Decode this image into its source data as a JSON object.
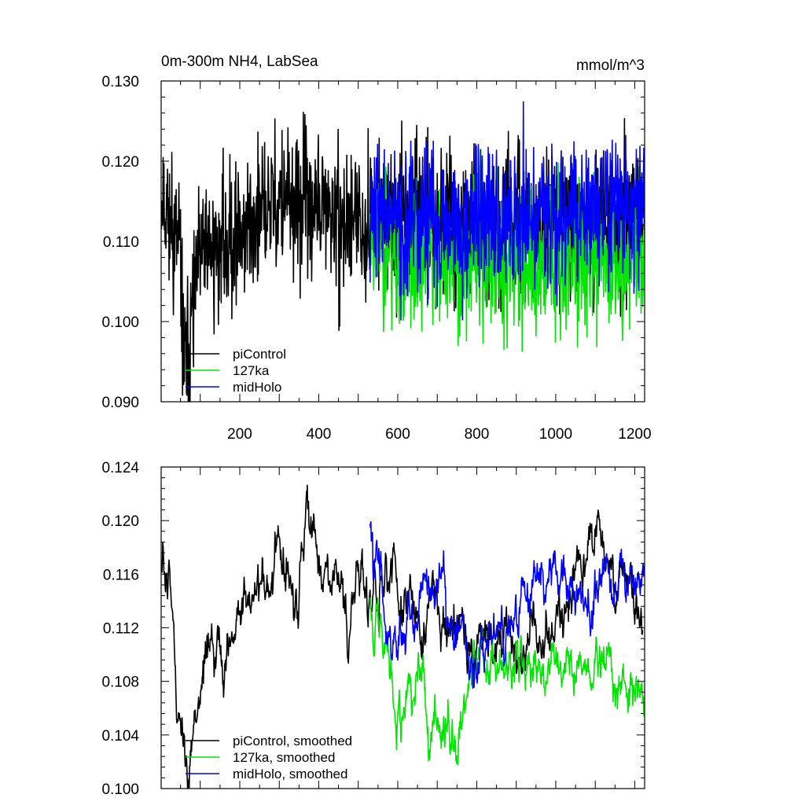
{
  "chart_data": [
    {
      "type": "line",
      "title": "0m-300m NH4, LabSea",
      "units": "mmol/m^3",
      "xlim": [
        1,
        1225
      ],
      "ylim": [
        0.09,
        0.13
      ],
      "yticks": [
        0.09,
        0.1,
        0.11,
        0.12,
        0.13
      ],
      "ytick_labels": [
        "0.090",
        "0.100",
        "0.110",
        "0.120",
        "0.130"
      ],
      "xticks": [
        200,
        400,
        600,
        800,
        1000,
        1200
      ],
      "xtick_labels": [
        "200",
        "400",
        "600",
        "800",
        "1000",
        "1200"
      ],
      "legend_position": "bottom-left",
      "series": [
        {
          "name": "piControl",
          "color": "#000000",
          "x_range": [
            1,
            1220
          ],
          "x": [
            1,
            50,
            60,
            100,
            200,
            300,
            400,
            470,
            600,
            800,
            1000,
            1220
          ],
          "values": [
            0.117,
            0.108,
            0.093,
            0.108,
            0.111,
            0.115,
            0.114,
            0.112,
            0.113,
            0.112,
            0.112,
            0.113
          ]
        },
        {
          "name": "127ka",
          "color": "#00e600",
          "x_range": [
            530,
            1225
          ],
          "x": [
            530,
            600,
            700,
            800,
            900,
            1000,
            1100,
            1225
          ],
          "values": [
            0.112,
            0.108,
            0.107,
            0.108,
            0.107,
            0.108,
            0.107,
            0.108
          ]
        },
        {
          "name": "midHolo",
          "color": "#0000ff",
          "x_range": [
            530,
            1225
          ],
          "x": [
            530,
            600,
            700,
            800,
            900,
            1000,
            1100,
            1225
          ],
          "values": [
            0.115,
            0.112,
            0.112,
            0.113,
            0.113,
            0.114,
            0.114,
            0.115
          ]
        }
      ]
    },
    {
      "type": "line",
      "title": "",
      "xlim": [
        1,
        1225
      ],
      "ylim": [
        0.1,
        0.124
      ],
      "yticks": [
        0.1,
        0.104,
        0.108,
        0.112,
        0.116,
        0.12,
        0.124
      ],
      "ytick_labels": [
        "0.100",
        "0.104",
        "0.108",
        "0.112",
        "0.116",
        "0.120",
        "0.124"
      ],
      "legend_position": "bottom-left",
      "series": [
        {
          "name": "piControl, smoothed",
          "color": "#000000",
          "x_range": [
            1,
            1220
          ],
          "x": [
            1,
            20,
            40,
            60,
            70,
            100,
            150,
            200,
            250,
            300,
            350,
            370,
            420,
            470,
            500,
            600,
            650,
            700,
            800,
            900,
            1000,
            1080,
            1200
          ],
          "values": [
            0.116,
            0.117,
            0.107,
            0.104,
            0.101,
            0.108,
            0.109,
            0.113,
            0.115,
            0.117,
            0.113,
            0.12,
            0.116,
            0.113,
            0.115,
            0.115,
            0.113,
            0.113,
            0.111,
            0.11,
            0.112,
            0.119,
            0.113
          ]
        },
        {
          "name": "127ka, smoothed",
          "color": "#00e600",
          "x_range": [
            530,
            1225
          ],
          "x": [
            530,
            560,
            600,
            700,
            760,
            800,
            900,
            1000,
            1100,
            1225
          ],
          "values": [
            0.115,
            0.111,
            0.107,
            0.106,
            0.105,
            0.11,
            0.109,
            0.109,
            0.109,
            0.108
          ]
        },
        {
          "name": "midHolo, smoothed",
          "color": "#0000ff",
          "x_range": [
            530,
            1225
          ],
          "x": [
            530,
            560,
            600,
            700,
            800,
            900,
            950,
            1000,
            1100,
            1225
          ],
          "values": [
            0.119,
            0.115,
            0.111,
            0.115,
            0.11,
            0.113,
            0.117,
            0.115,
            0.115,
            0.116
          ]
        }
      ]
    }
  ]
}
